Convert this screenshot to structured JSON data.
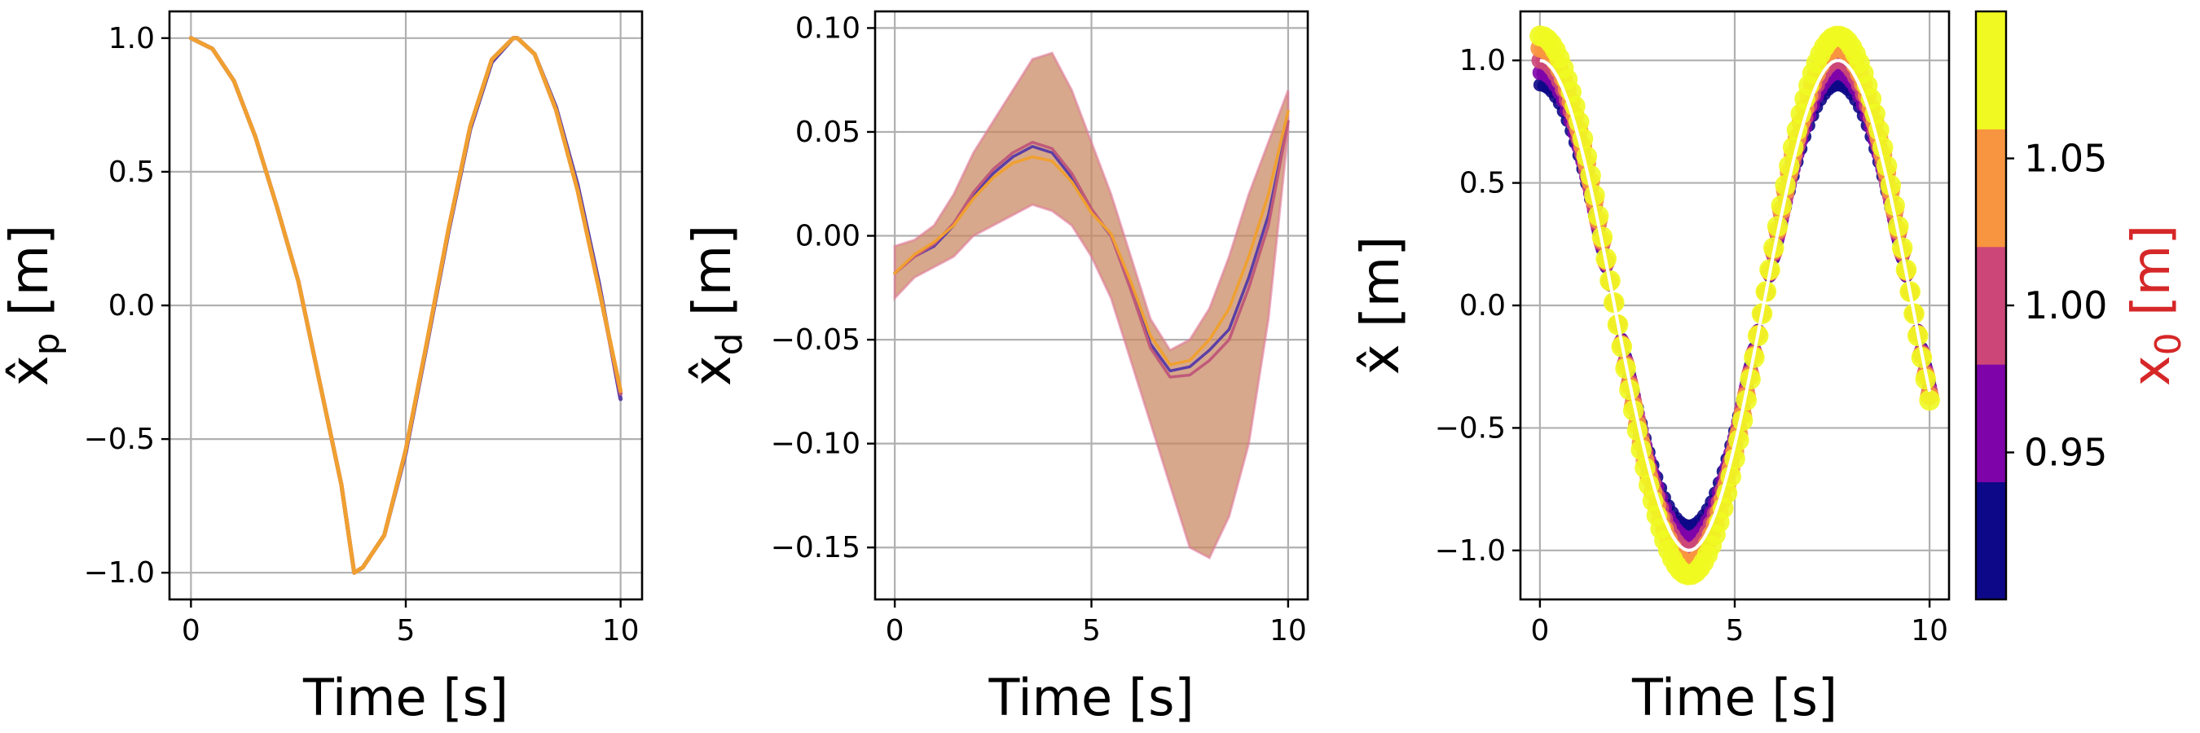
{
  "chart_data": [
    {
      "type": "line",
      "xlabel": "Time [s]",
      "ylabel": "x̂p [m]",
      "ylabel_base": "x̂",
      "ylabel_sub": "p",
      "ylabel_unit": "[m]",
      "xlim": [
        -0.5,
        10.5
      ],
      "ylim": [
        -1.1,
        1.1
      ],
      "xticks": [
        0,
        5,
        10
      ],
      "xtick_labels": [
        "0",
        "5",
        "10"
      ],
      "yticks": [
        -1.0,
        -0.5,
        0.0,
        0.5,
        1.0
      ],
      "ytick_labels": [
        "−1.0",
        "−0.5",
        "0.0",
        "0.5",
        "1.0"
      ],
      "grid": true,
      "series": [
        {
          "color": "#5b3ea6",
          "x": [
            0,
            0.5,
            1,
            1.5,
            2,
            2.5,
            3,
            3.5,
            3.8,
            4,
            4.5,
            5,
            5.5,
            6,
            6.5,
            7,
            7.5,
            7.6,
            8,
            8.5,
            9,
            9.5,
            10
          ],
          "y": [
            1.0,
            0.96,
            0.84,
            0.63,
            0.37,
            0.09,
            -0.29,
            -0.67,
            -1.0,
            -0.98,
            -0.86,
            -0.55,
            -0.14,
            0.28,
            0.66,
            0.91,
            1.0,
            1.0,
            0.94,
            0.74,
            0.45,
            0.08,
            -0.35
          ]
        },
        {
          "color": "#c05a7a",
          "x": [
            0,
            0.5,
            1,
            1.5,
            2,
            2.5,
            3,
            3.5,
            3.8,
            4,
            4.5,
            5,
            5.5,
            6,
            6.5,
            7,
            7.5,
            7.6,
            8,
            8.5,
            9,
            9.5,
            10
          ],
          "y": [
            1.0,
            0.96,
            0.84,
            0.63,
            0.37,
            0.09,
            -0.29,
            -0.67,
            -1.0,
            -0.98,
            -0.86,
            -0.54,
            -0.13,
            0.29,
            0.67,
            0.92,
            1.0,
            1.0,
            0.94,
            0.73,
            0.43,
            0.06,
            -0.33
          ]
        },
        {
          "color": "#f0a030",
          "x": [
            0,
            0.5,
            1,
            1.5,
            2,
            2.5,
            3,
            3.5,
            3.8,
            4,
            4.5,
            5,
            5.5,
            6,
            6.5,
            7,
            7.5,
            7.6,
            8,
            8.5,
            9,
            9.5,
            10
          ],
          "y": [
            1.0,
            0.96,
            0.84,
            0.63,
            0.37,
            0.09,
            -0.29,
            -0.67,
            -1.0,
            -0.98,
            -0.86,
            -0.54,
            -0.13,
            0.29,
            0.67,
            0.92,
            1.0,
            1.0,
            0.94,
            0.73,
            0.43,
            0.06,
            -0.32
          ]
        }
      ]
    },
    {
      "type": "line",
      "xlabel": "Time [s]",
      "ylabel": "x̂d [m]",
      "ylabel_base": "x̂",
      "ylabel_sub": "d",
      "ylabel_unit": "[m]",
      "xlim": [
        -0.5,
        10.5
      ],
      "ylim": [
        -0.175,
        0.108
      ],
      "xticks": [
        0,
        5,
        10
      ],
      "xtick_labels": [
        "0",
        "5",
        "10"
      ],
      "yticks": [
        -0.15,
        -0.1,
        -0.05,
        0.0,
        0.05,
        0.1
      ],
      "ytick_labels": [
        "−0.15",
        "−0.10",
        "−0.05",
        "0.00",
        "0.05",
        "0.10"
      ],
      "grid": true,
      "band": {
        "color": "#c8865e",
        "x": [
          0,
          0.5,
          1,
          1.5,
          2,
          2.5,
          3,
          3.5,
          4,
          4.5,
          5,
          5.5,
          6,
          6.5,
          7,
          7.5,
          8,
          8.5,
          9,
          9.5,
          10
        ],
        "upper": [
          -0.005,
          -0.002,
          0.005,
          0.02,
          0.04,
          0.055,
          0.07,
          0.085,
          0.088,
          0.07,
          0.045,
          0.02,
          -0.01,
          -0.04,
          -0.055,
          -0.05,
          -0.035,
          -0.01,
          0.02,
          0.045,
          0.07
        ],
        "lower": [
          -0.03,
          -0.02,
          -0.015,
          -0.01,
          0.0,
          0.005,
          0.01,
          0.015,
          0.012,
          0.005,
          -0.01,
          -0.03,
          -0.06,
          -0.09,
          -0.12,
          -0.15,
          -0.155,
          -0.135,
          -0.1,
          -0.04,
          0.05
        ]
      },
      "series": [
        {
          "color": "#5b3ea6",
          "x": [
            0,
            0.5,
            1,
            1.5,
            2,
            2.5,
            3,
            3.5,
            4,
            4.5,
            5,
            5.5,
            6,
            6.5,
            7,
            7.5,
            8,
            8.5,
            9,
            9.5,
            10
          ],
          "y": [
            -0.018,
            -0.01,
            -0.005,
            0.005,
            0.02,
            0.03,
            0.038,
            0.043,
            0.04,
            0.028,
            0.012,
            0.0,
            -0.025,
            -0.052,
            -0.065,
            -0.063,
            -0.055,
            -0.045,
            -0.02,
            0.01,
            0.055
          ]
        },
        {
          "color": "#c05a7a",
          "x": [
            0,
            0.5,
            1,
            1.5,
            2,
            2.5,
            3,
            3.5,
            4,
            4.5,
            5,
            5.5,
            6,
            6.5,
            7,
            7.5,
            8,
            8.5,
            9,
            9.5,
            10
          ],
          "y": [
            -0.018,
            -0.01,
            -0.004,
            0.006,
            0.021,
            0.032,
            0.04,
            0.045,
            0.042,
            0.03,
            0.013,
            0.0,
            -0.026,
            -0.054,
            -0.068,
            -0.067,
            -0.06,
            -0.05,
            -0.025,
            0.005,
            0.055
          ]
        },
        {
          "color": "#f0a030",
          "x": [
            0,
            0.5,
            1,
            1.5,
            2,
            2.5,
            3,
            3.5,
            4,
            4.5,
            5,
            5.5,
            6,
            6.5,
            7,
            7.5,
            8,
            8.5,
            9,
            9.5,
            10
          ],
          "y": [
            -0.018,
            -0.009,
            -0.003,
            0.005,
            0.018,
            0.028,
            0.035,
            0.038,
            0.036,
            0.026,
            0.011,
            0.001,
            -0.022,
            -0.048,
            -0.062,
            -0.06,
            -0.05,
            -0.035,
            -0.01,
            0.02,
            0.06
          ]
        }
      ]
    },
    {
      "type": "scatter",
      "xlabel": "Time [s]",
      "ylabel": "x̂ [m]",
      "ylabel_base": "x̂",
      "ylabel_sub": "",
      "ylabel_unit": "[m]",
      "xlim": [
        -0.5,
        10.5
      ],
      "ylim": [
        -1.2,
        1.2
      ],
      "xticks": [
        0,
        5,
        10
      ],
      "xtick_labels": [
        "0",
        "5",
        "10"
      ],
      "yticks": [
        -1.0,
        -0.5,
        0.0,
        0.5,
        1.0
      ],
      "ytick_labels": [
        "−1.0",
        "−0.5",
        "0.0",
        "0.5",
        "1.0"
      ],
      "grid": true,
      "period": 7.65,
      "t_max": 10,
      "x0_values": [
        0.9,
        0.95,
        1.0,
        1.05,
        1.1
      ],
      "series_colors": [
        "#0d0887",
        "#7e03a8",
        "#cc4778",
        "#f89540",
        "#f0f921"
      ],
      "colorbar": {
        "label": "x₀ [m]",
        "label_base": "x",
        "label_sub": "0",
        "label_unit": "[m]",
        "label_color": "#d62728",
        "range": [
          0.9,
          1.1
        ],
        "ticks": [
          0.95,
          1.0,
          1.05
        ],
        "tick_labels": [
          "0.95",
          "1.00",
          "1.05"
        ],
        "bins": [
          "#0d0887",
          "#7e03a8",
          "#cc4778",
          "#f89540",
          "#f0f921"
        ]
      }
    }
  ]
}
